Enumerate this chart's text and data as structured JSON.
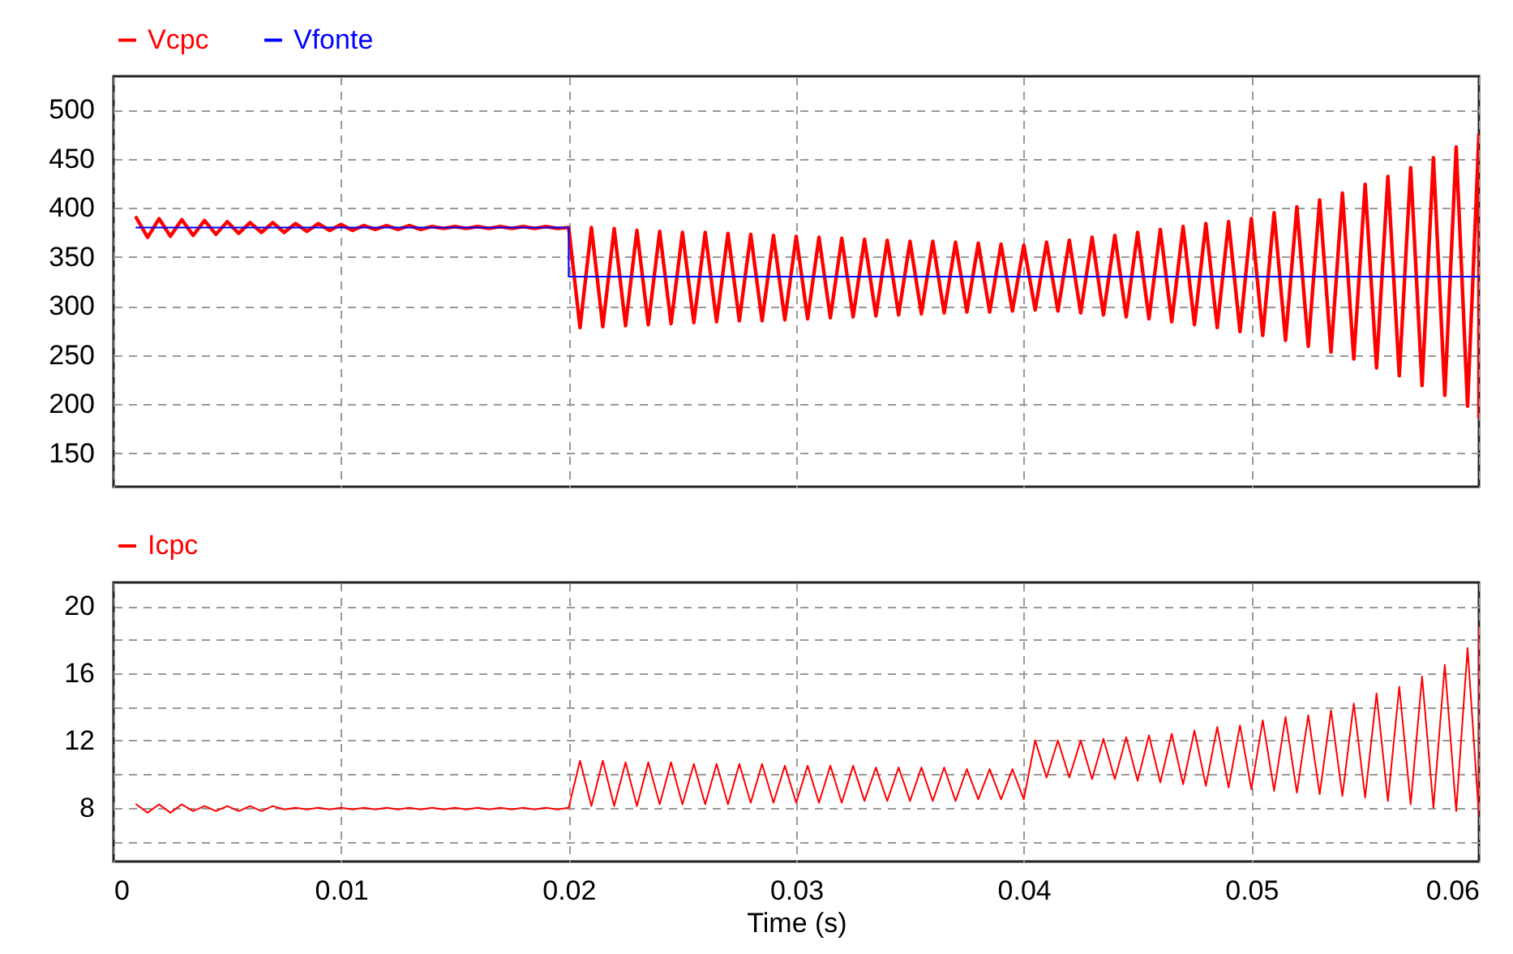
{
  "chart_data": [
    {
      "type": "line",
      "xlim": [
        0,
        0.06
      ],
      "xticks": [
        0,
        0.01,
        0.02,
        0.03,
        0.04,
        0.05,
        0.06
      ],
      "ylim": [
        116,
        534
      ],
      "yticks": [
        150,
        200,
        250,
        300,
        350,
        400,
        450,
        500
      ],
      "grid": true,
      "legend": "top left",
      "tick_labels": "y",
      "x": [
        0.001,
        0.0015,
        0.002,
        0.0025,
        0.003,
        0.0035,
        0.004,
        0.0045,
        0.005,
        0.0055,
        0.006,
        0.0065,
        0.007,
        0.0075,
        0.008,
        0.0085,
        0.009,
        0.0095,
        0.01,
        0.0105,
        0.011,
        0.0115,
        0.012,
        0.0125,
        0.013,
        0.0135,
        0.014,
        0.0145,
        0.015,
        0.0155,
        0.016,
        0.0165,
        0.017,
        0.0175,
        0.018,
        0.0185,
        0.019,
        0.0195,
        0.02,
        0.0205,
        0.021,
        0.0215,
        0.022,
        0.0225,
        0.023,
        0.0235,
        0.024,
        0.0245,
        0.025,
        0.0255,
        0.026,
        0.0265,
        0.027,
        0.0275,
        0.028,
        0.0285,
        0.029,
        0.0295,
        0.03,
        0.0305,
        0.031,
        0.0315,
        0.032,
        0.0325,
        0.033,
        0.0335,
        0.034,
        0.0345,
        0.035,
        0.0355,
        0.036,
        0.0365,
        0.037,
        0.0375,
        0.038,
        0.0385,
        0.039,
        0.0395,
        0.04,
        0.0405,
        0.041,
        0.0415,
        0.042,
        0.0425,
        0.043,
        0.0435,
        0.044,
        0.0445,
        0.045,
        0.0455,
        0.046,
        0.0465,
        0.047,
        0.0475,
        0.048,
        0.0485,
        0.049,
        0.0495,
        0.05,
        0.0505,
        0.051,
        0.0515,
        0.052,
        0.0525,
        0.053,
        0.0535,
        0.054,
        0.0545,
        0.055,
        0.0555,
        0.056,
        0.0565,
        0.057,
        0.0575,
        0.058,
        0.0585,
        0.059,
        0.0595,
        0.06,
        0.06
      ],
      "series": [
        {
          "name": "Vcpc",
          "color": "#ff0000",
          "values": [
            390,
            370,
            389,
            371,
            388,
            372,
            387,
            373,
            386,
            374,
            385,
            375,
            385,
            375,
            384,
            376,
            384,
            377,
            383,
            377,
            382,
            378,
            382,
            378,
            382,
            378,
            381,
            379,
            381,
            379,
            381,
            379,
            381,
            379,
            381,
            379,
            381,
            379,
            380,
            278,
            380,
            279,
            379,
            280,
            377,
            281,
            376,
            282,
            375,
            283,
            375,
            284,
            374,
            285,
            373,
            285,
            372,
            286,
            371,
            287,
            370,
            288,
            369,
            289,
            368,
            290,
            367,
            291,
            366,
            292,
            366,
            293,
            365,
            294,
            364,
            294,
            363,
            295,
            362,
            296,
            365,
            295,
            367,
            293,
            370,
            291,
            372,
            289,
            375,
            287,
            378,
            284,
            381,
            281,
            384,
            278,
            386,
            274,
            389,
            270,
            395,
            265,
            401,
            259,
            408,
            253,
            415,
            246,
            424,
            237,
            432,
            229,
            441,
            219,
            451,
            209,
            462,
            198,
            475,
            187
          ]
        },
        {
          "name": "Vfonte",
          "color": "#0000ff",
          "x": [
            0.001,
            0.02,
            0.02,
            0.06
          ],
          "values": [
            380,
            380,
            330,
            330
          ]
        }
      ]
    },
    {
      "type": "line",
      "xlim": [
        0,
        0.06
      ],
      "xticks": [
        0,
        0.01,
        0.02,
        0.03,
        0.04,
        0.05,
        0.06
      ],
      "xlabel": "Time (s)",
      "ylim": [
        4.8,
        21.4
      ],
      "yticks": [
        {
          "value": 6,
          "label": null
        },
        8,
        {
          "value": 10,
          "label": null
        },
        12,
        {
          "value": 14,
          "label": null
        },
        16,
        {
          "value": 18,
          "label": null
        },
        20
      ],
      "grid": true,
      "legend": "top left",
      "x": [
        0.001,
        0.0015,
        0.002,
        0.0025,
        0.003,
        0.0035,
        0.004,
        0.0045,
        0.005,
        0.0055,
        0.006,
        0.0065,
        0.007,
        0.0075,
        0.008,
        0.0085,
        0.009,
        0.0095,
        0.01,
        0.0105,
        0.011,
        0.0115,
        0.012,
        0.0125,
        0.013,
        0.0135,
        0.014,
        0.0145,
        0.015,
        0.0155,
        0.016,
        0.0165,
        0.017,
        0.0175,
        0.018,
        0.0185,
        0.019,
        0.0195,
        0.02,
        0.0205,
        0.021,
        0.0215,
        0.022,
        0.0225,
        0.023,
        0.0235,
        0.024,
        0.0245,
        0.025,
        0.0255,
        0.026,
        0.0265,
        0.027,
        0.0275,
        0.028,
        0.0285,
        0.029,
        0.0295,
        0.03,
        0.0305,
        0.031,
        0.0315,
        0.032,
        0.0325,
        0.033,
        0.0335,
        0.034,
        0.0345,
        0.035,
        0.0355,
        0.036,
        0.0365,
        0.037,
        0.0375,
        0.038,
        0.0385,
        0.039,
        0.0395,
        0.04,
        0.0405,
        0.041,
        0.0415,
        0.042,
        0.0425,
        0.043,
        0.0435,
        0.044,
        0.0445,
        0.045,
        0.0455,
        0.046,
        0.0465,
        0.047,
        0.0475,
        0.048,
        0.0485,
        0.049,
        0.0495,
        0.05,
        0.0505,
        0.051,
        0.0515,
        0.052,
        0.0525,
        0.053,
        0.0535,
        0.054,
        0.0545,
        0.055,
        0.0555,
        0.056,
        0.0565,
        0.057,
        0.0575,
        0.058,
        0.0585,
        0.059,
        0.0595,
        0.06,
        0.06
      ],
      "series": [
        {
          "name": "Icpc",
          "color": "#ff0000",
          "values": [
            8.2,
            7.7,
            8.2,
            7.7,
            8.2,
            7.8,
            8.1,
            7.8,
            8.1,
            7.8,
            8.1,
            7.8,
            8.1,
            7.9,
            8,
            7.9,
            8,
            7.9,
            8,
            7.9,
            8,
            7.9,
            8,
            7.9,
            8,
            7.9,
            8,
            7.9,
            8,
            7.9,
            8,
            7.9,
            8,
            7.9,
            8,
            7.9,
            8,
            7.9,
            8,
            10.8,
            8.1,
            10.8,
            8.1,
            10.7,
            8.1,
            10.7,
            8.2,
            10.7,
            8.2,
            10.6,
            8.2,
            10.6,
            8.2,
            10.6,
            8.3,
            10.6,
            8.3,
            10.5,
            8.3,
            10.5,
            8.3,
            10.5,
            8.3,
            10.5,
            8.4,
            10.4,
            8.4,
            10.4,
            8.4,
            10.4,
            8.4,
            10.4,
            8.4,
            10.3,
            8.5,
            10.3,
            8.5,
            10.3,
            8.5,
            12,
            9.8,
            12,
            9.8,
            12,
            9.7,
            12.1,
            9.7,
            12.2,
            9.6,
            12.3,
            9.5,
            12.4,
            9.4,
            12.6,
            9.3,
            12.8,
            9.2,
            12.9,
            9.1,
            13.2,
            9,
            13.4,
            8.9,
            13.5,
            8.8,
            13.8,
            8.7,
            14.2,
            8.6,
            14.8,
            8.4,
            15.2,
            8.2,
            15.8,
            8,
            16.5,
            7.8,
            17.5,
            7.5,
            18.8
          ]
        }
      ]
    }
  ]
}
